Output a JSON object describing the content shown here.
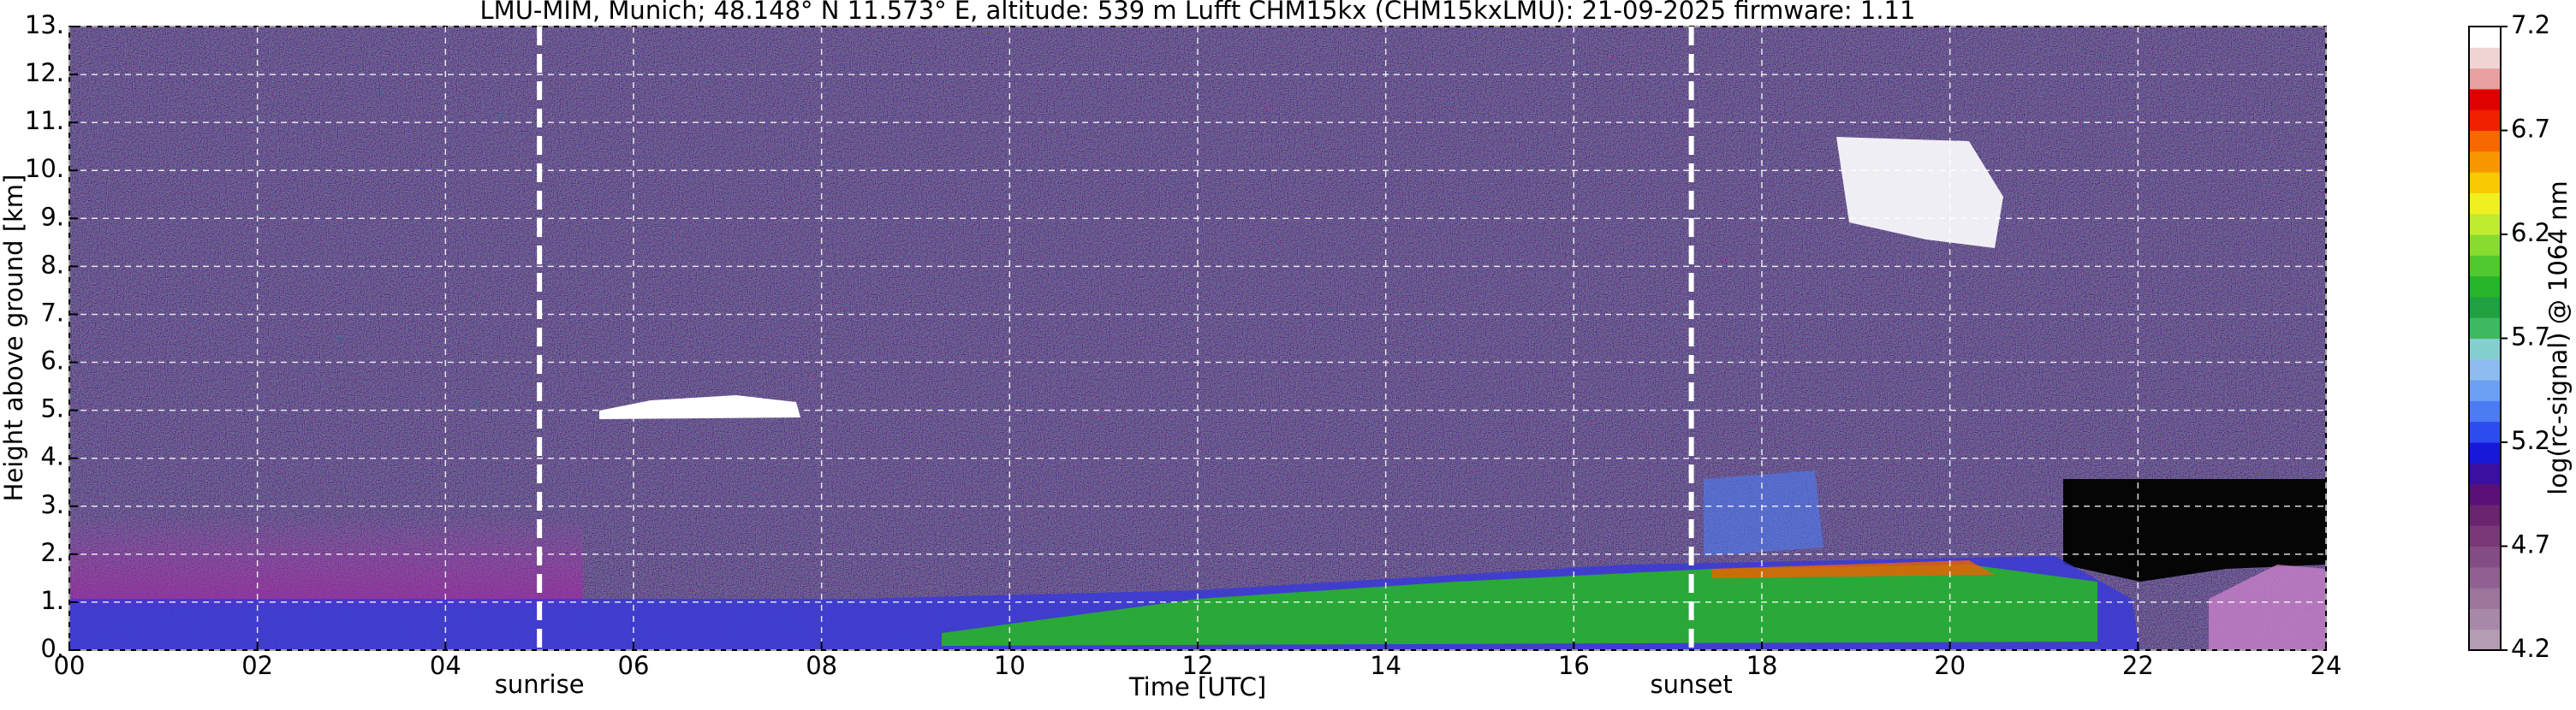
{
  "chart_data": {
    "type": "heatmap",
    "title": "LMU-MIM, Munich; 48.148° N 11.573° E, altitude: 539 m    Lufft CHM15kx (CHM15kxLMU): 21-09-2025    firmware: 1.11",
    "x_label": "Time [UTC]",
    "y_label": "Height above ground [km]",
    "xlim": [
      0,
      24
    ],
    "xticks": [
      {
        "value": 0,
        "label": "00"
      },
      {
        "value": 2,
        "label": "02"
      },
      {
        "value": 4,
        "label": "04"
      },
      {
        "value": 6,
        "label": "06"
      },
      {
        "value": 8,
        "label": "08"
      },
      10,
      12,
      14,
      16,
      18,
      20,
      22,
      24
    ],
    "ylim": [
      0,
      13
    ],
    "yticks": [
      {
        "value": 0,
        "label": "0."
      },
      {
        "value": 1,
        "label": "1."
      },
      {
        "value": 2,
        "label": "2."
      },
      {
        "value": 3,
        "label": "3."
      },
      {
        "value": 4,
        "label": "4."
      },
      {
        "value": 5,
        "label": "5."
      },
      {
        "value": 6,
        "label": "6."
      },
      {
        "value": 7,
        "label": "7."
      },
      {
        "value": 8,
        "label": "8."
      },
      {
        "value": 9,
        "label": "9."
      },
      {
        "value": 10,
        "label": "10."
      },
      {
        "value": 11,
        "label": "11."
      },
      {
        "value": 12,
        "label": "12."
      },
      {
        "value": 13,
        "label": "13."
      }
    ],
    "grid": true,
    "annotations": [
      {
        "label": "sunrise",
        "x": 5.0
      },
      {
        "label": "sunset",
        "x": 17.25
      }
    ],
    "colorbar": {
      "label": "log(rc-signal) @ 1064 nm",
      "lim": [
        4.2,
        7.2
      ],
      "ticks": [
        4.2,
        4.7,
        5.2,
        5.7,
        6.2,
        6.7,
        7.2
      ],
      "colors": [
        "#b49cb4",
        "#a888a8",
        "#9c749c",
        "#906090",
        "#844c84",
        "#783878",
        "#6a2470",
        "#5a1078",
        "#3a10a0",
        "#1818d8",
        "#2c4cf0",
        "#4c7cf4",
        "#6ca0f4",
        "#8cbcf0",
        "#84d0d0",
        "#40b860",
        "#20a040",
        "#28b428",
        "#50c830",
        "#88dc30",
        "#c0ec30",
        "#f0f020",
        "#f8c800",
        "#f89800",
        "#f86800",
        "#f02000",
        "#e00000",
        "#e8a0a0",
        "#f0d4d4",
        "#ffffff"
      ]
    }
  }
}
